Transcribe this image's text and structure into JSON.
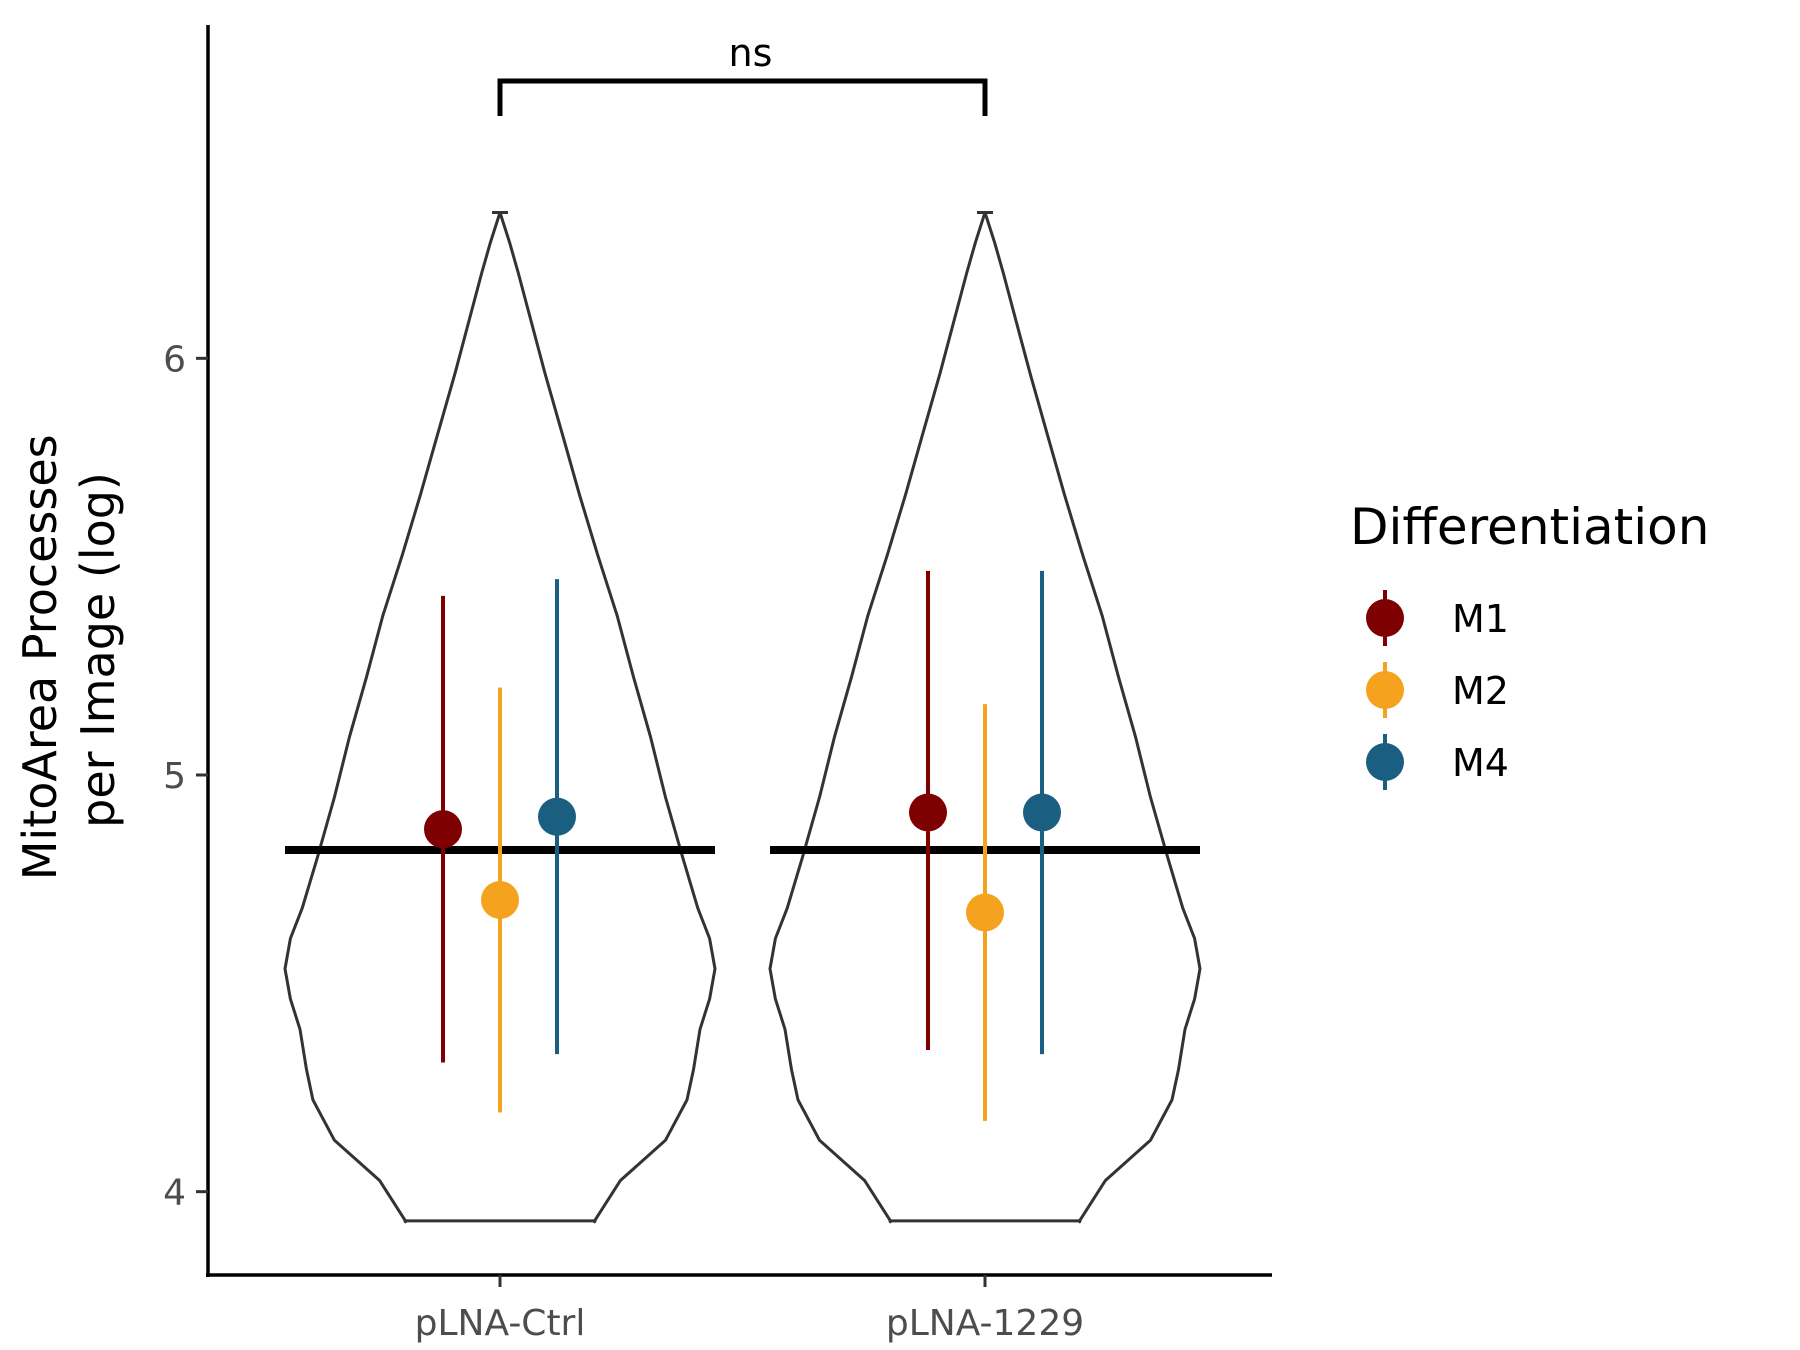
{
  "chart_data": {
    "type": "violin",
    "categories": [
      "pLNA-Ctrl",
      "pLNA-1229"
    ],
    "ylabel_lines": [
      "MitoArea Processes",
      "per Image (log)"
    ],
    "xlabel": "",
    "ylim": [
      3.8,
      6.8
    ],
    "y_ticks": [
      4,
      5,
      6
    ],
    "y_tick_labels": [
      "4",
      "5",
      "6"
    ],
    "grid": false,
    "legend": {
      "title": "Differentiation",
      "position": "right",
      "entries": [
        {
          "label": "M1",
          "color": "#7f0000"
        },
        {
          "label": "M2",
          "color": "#f5a31e"
        },
        {
          "label": "M4",
          "color": "#1a5e82"
        }
      ]
    },
    "series": [
      {
        "name": "M1",
        "color": "#7f0000",
        "means": [
          4.87,
          4.91
        ],
        "lower": [
          4.31,
          4.34
        ],
        "upper": [
          5.43,
          5.49
        ]
      },
      {
        "name": "M2",
        "color": "#f5a31e",
        "means": [
          4.7,
          4.67
        ],
        "lower": [
          4.19,
          4.17
        ],
        "upper": [
          5.21,
          5.17
        ]
      },
      {
        "name": "M4",
        "color": "#1a5e82",
        "means": [
          4.9,
          4.91
        ],
        "lower": [
          4.33,
          4.33
        ],
        "upper": [
          5.47,
          5.49
        ]
      }
    ],
    "group_medians": [
      4.82,
      4.82
    ],
    "violin_range": [
      3.93,
      6.35
    ],
    "significance": {
      "groups": [
        "pLNA-Ctrl",
        "pLNA-1229"
      ],
      "label": "ns"
    }
  }
}
